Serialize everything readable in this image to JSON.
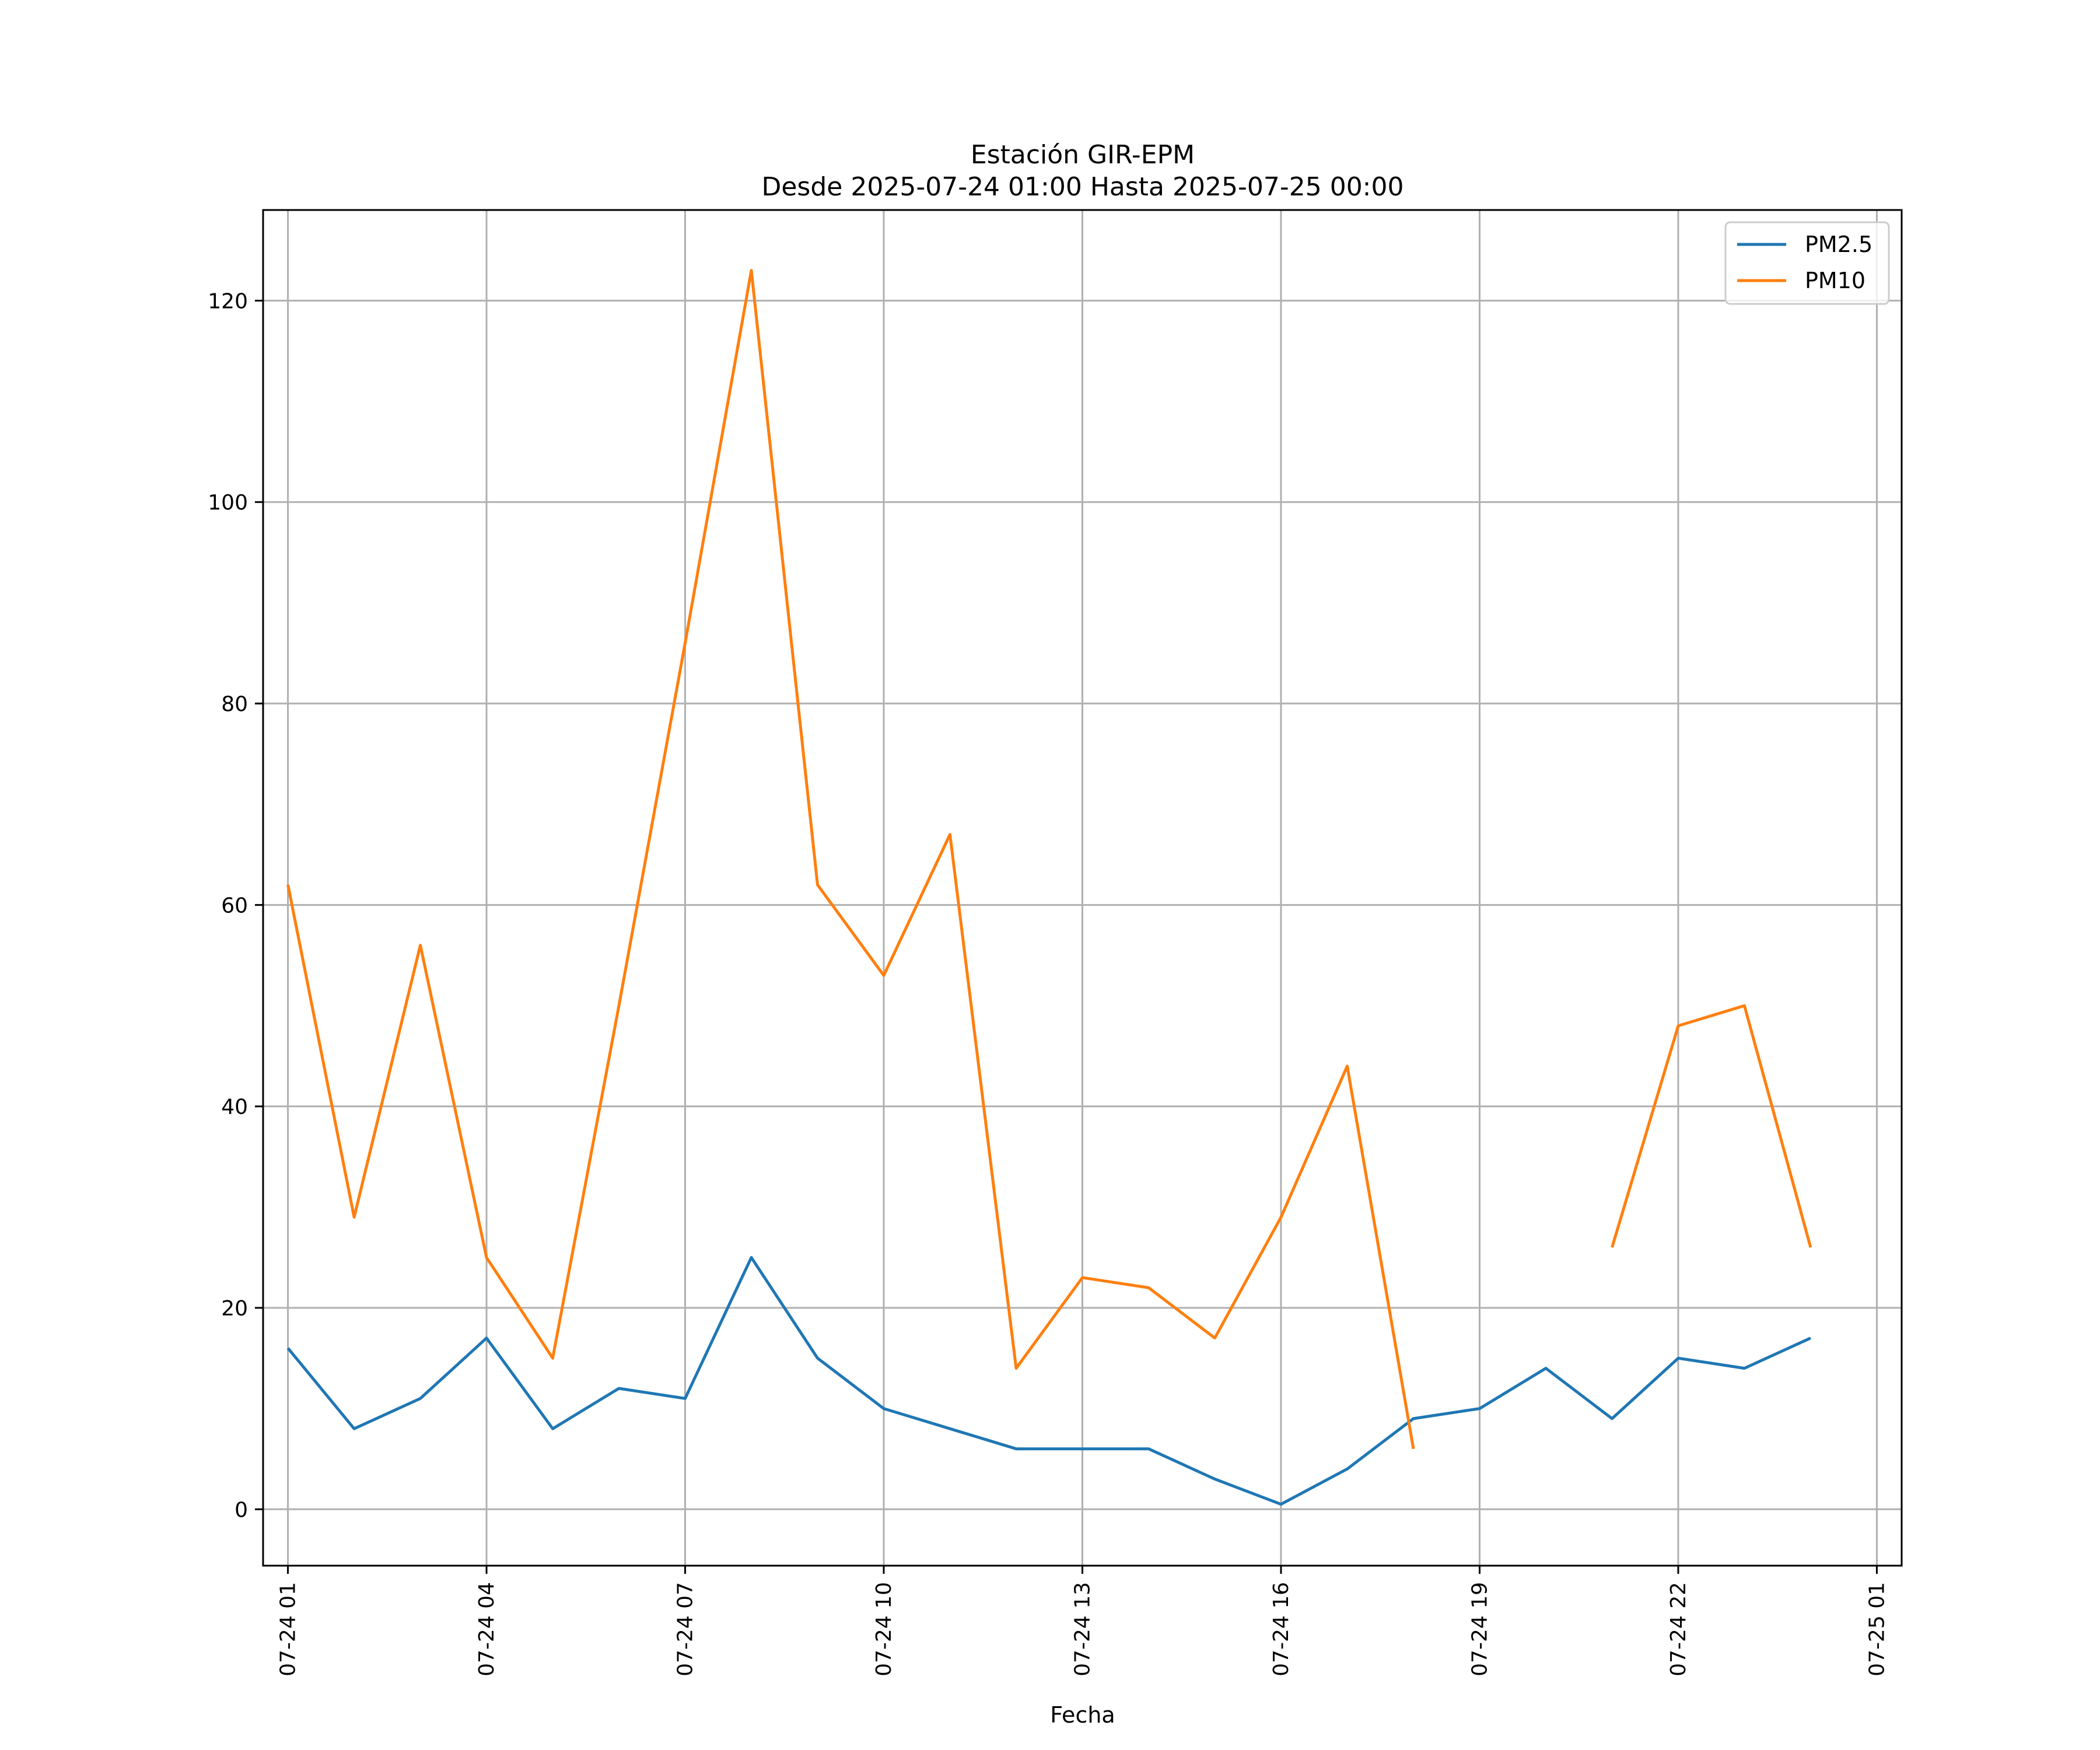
{
  "chart_data": {
    "type": "line",
    "title": "Estación GIR-EPM",
    "subtitle": "Desde 2025-07-24 01:00 Hasta 2025-07-25 00:00",
    "xlabel": "Fecha",
    "ylabel": "",
    "x_unit": "hours from 2025-07-24 00:00",
    "xlim": [
      0.625,
      25.375
    ],
    "ylim": [
      -5.6,
      129
    ],
    "x_ticks": [
      1,
      4,
      7,
      10,
      13,
      16,
      19,
      22,
      25
    ],
    "x_tick_labels": [
      "07-24 01",
      "07-24 04",
      "07-24 07",
      "07-24 10",
      "07-24 13",
      "07-24 16",
      "07-24 19",
      "07-24 22",
      "07-25 01"
    ],
    "y_ticks": [
      0,
      20,
      40,
      60,
      80,
      100,
      120
    ],
    "y_tick_labels": [
      "0",
      "20",
      "40",
      "60",
      "80",
      "100",
      "120"
    ],
    "grid": true,
    "legend_position": "top-right",
    "x": [
      1,
      2,
      3,
      4,
      5,
      6,
      7,
      8,
      9,
      10,
      11,
      12,
      13,
      14,
      15,
      16,
      17,
      18,
      19,
      20,
      21,
      22,
      23,
      24
    ],
    "series": [
      {
        "name": "PM2.5",
        "color": "#1f77b4",
        "values": [
          16,
          8,
          11,
          17,
          8,
          12,
          11,
          25,
          15,
          10,
          8,
          6,
          6,
          6,
          3,
          0.5,
          4,
          9,
          10,
          14,
          9,
          15,
          14,
          17
        ]
      },
      {
        "name": "PM10",
        "color": "#ff7f0e",
        "values": [
          62,
          29,
          56,
          25,
          15,
          50,
          86,
          123,
          62,
          53,
          67,
          14,
          23,
          22,
          17,
          29,
          44,
          6,
          null,
          null,
          26,
          48,
          50,
          26
        ]
      }
    ]
  }
}
